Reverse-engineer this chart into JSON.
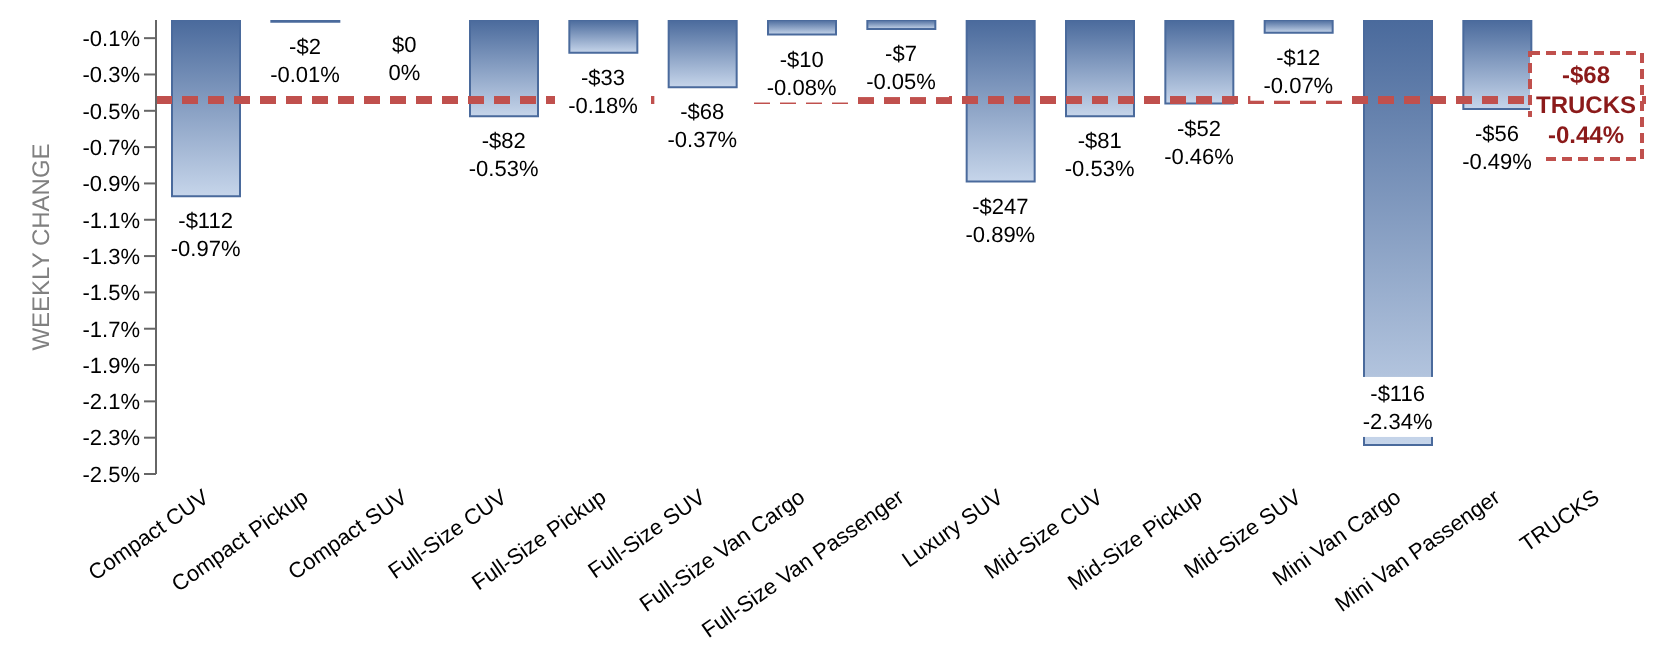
{
  "chart_data": {
    "type": "bar",
    "ylabel": "WEEKLY CHANGE",
    "categories": [
      "Compact CUV",
      "Compact Pickup",
      "Compact SUV",
      "Full-Size CUV",
      "Full-Size Pickup",
      "Full-Size SUV",
      "Full-Size Van Cargo",
      "Full-Size Van Passenger",
      "Luxury SUV",
      "Mid-Size CUV",
      "Mid-Size Pickup",
      "Mid-Size SUV",
      "Mini Van Cargo",
      "Mini Van Passenger",
      "TRUCKS"
    ],
    "values": [
      -0.97,
      -0.01,
      0,
      -0.53,
      -0.18,
      -0.37,
      -0.08,
      -0.05,
      -0.89,
      -0.53,
      -0.46,
      -0.07,
      -2.34,
      -0.49,
      null
    ],
    "value_labels": [
      "-$112\n-0.97%",
      "-$2\n-0.01%",
      "$0\n0%",
      "-$82\n-0.53%",
      "-$33\n-0.18%",
      "-$68\n-0.37%",
      "-$10\n-0.08%",
      "-$7\n-0.05%",
      "-$247\n-0.89%",
      "-$81\n-0.53%",
      "-$52\n-0.46%",
      "-$12\n-0.07%",
      "-$116\n-2.34%",
      "-$56\n-0.49%",
      null
    ],
    "color": "#4a6a9c",
    "ylim": [
      -2.5,
      0
    ],
    "yticks": [
      {
        "value": -0.1,
        "label": "-0.1%"
      },
      {
        "value": -0.3,
        "label": "-0.3%"
      },
      {
        "value": -0.5,
        "label": "-0.5%"
      },
      {
        "value": -0.7,
        "label": "-0.7%"
      },
      {
        "value": -0.9,
        "label": "-0.9%"
      },
      {
        "value": -1.1,
        "label": "-1.1%"
      },
      {
        "value": -1.3,
        "label": "-1.3%"
      },
      {
        "value": -1.5,
        "label": "-1.5%"
      },
      {
        "value": -1.7,
        "label": "-1.7%"
      },
      {
        "value": -1.9,
        "label": "-1.9%"
      },
      {
        "value": -2.1,
        "label": "-2.1%"
      },
      {
        "value": -2.3,
        "label": "-2.3%"
      },
      {
        "value": -2.5,
        "label": "-2.5%"
      }
    ],
    "ref_lines": [
      {
        "axis": "y",
        "value": -0.44,
        "label": "-$68\nTRUCKS\n-0.44%",
        "color": "#c0504d",
        "line_style": "dashed"
      }
    ],
    "grid": false,
    "legend": false
  }
}
